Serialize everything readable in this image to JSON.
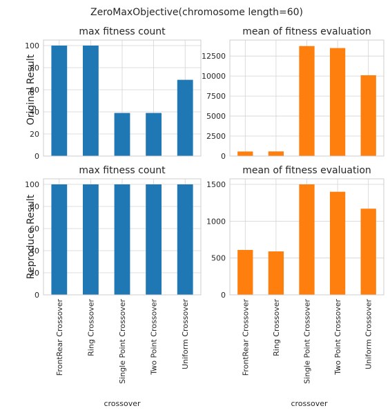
{
  "figure": {
    "suptitle": "ZeroMaxObjective(chromosome length=60)",
    "row_labels": [
      "Original Result",
      "Reproduce Result"
    ],
    "xlabel": "crossover"
  },
  "chart_data": [
    {
      "type": "bar",
      "title": "max fitness count",
      "categories": [
        "FrontRear Crossover",
        "Ring Crossover",
        "Single Point Crossover",
        "Two Point Crossover",
        "Uniform Crossover"
      ],
      "values": [
        100,
        100,
        39,
        39,
        69
      ],
      "ylim": [
        0,
        105
      ],
      "yticks": [
        0,
        20,
        40,
        60,
        80,
        100
      ],
      "ylabel": "Original Result",
      "color": "#1f77b4",
      "grid": true
    },
    {
      "type": "bar",
      "title": "mean of fitness evaluation",
      "categories": [
        "FrontRear Crossover",
        "Ring Crossover",
        "Single Point Crossover",
        "Two Point Crossover",
        "Uniform Crossover"
      ],
      "values": [
        570,
        580,
        13750,
        13500,
        10100
      ],
      "ylim": [
        0,
        14500
      ],
      "yticks": [
        0,
        2500,
        5000,
        7500,
        10000,
        12500
      ],
      "color": "#ff7f0e",
      "grid": true
    },
    {
      "type": "bar",
      "title": "max fitness count",
      "categories": [
        "FrontRear Crossover",
        "Ring Crossover",
        "Single Point Crossover",
        "Two Point Crossover",
        "Uniform Crossover"
      ],
      "values": [
        100,
        100,
        100,
        100,
        100
      ],
      "ylim": [
        0,
        105
      ],
      "yticks": [
        0,
        20,
        40,
        60,
        80,
        100
      ],
      "ylabel": "Reproduce Result",
      "xlabel": "crossover",
      "color": "#1f77b4",
      "grid": true
    },
    {
      "type": "bar",
      "title": "mean of fitness evaluation",
      "categories": [
        "FrontRear Crossover",
        "Ring Crossover",
        "Single Point Crossover",
        "Two Point Crossover",
        "Uniform Crossover"
      ],
      "values": [
        610,
        590,
        1500,
        1400,
        1170
      ],
      "ylim": [
        0,
        1575
      ],
      "yticks": [
        0,
        500,
        1000,
        1500
      ],
      "xlabel": "crossover",
      "color": "#ff7f0e",
      "grid": true
    }
  ]
}
